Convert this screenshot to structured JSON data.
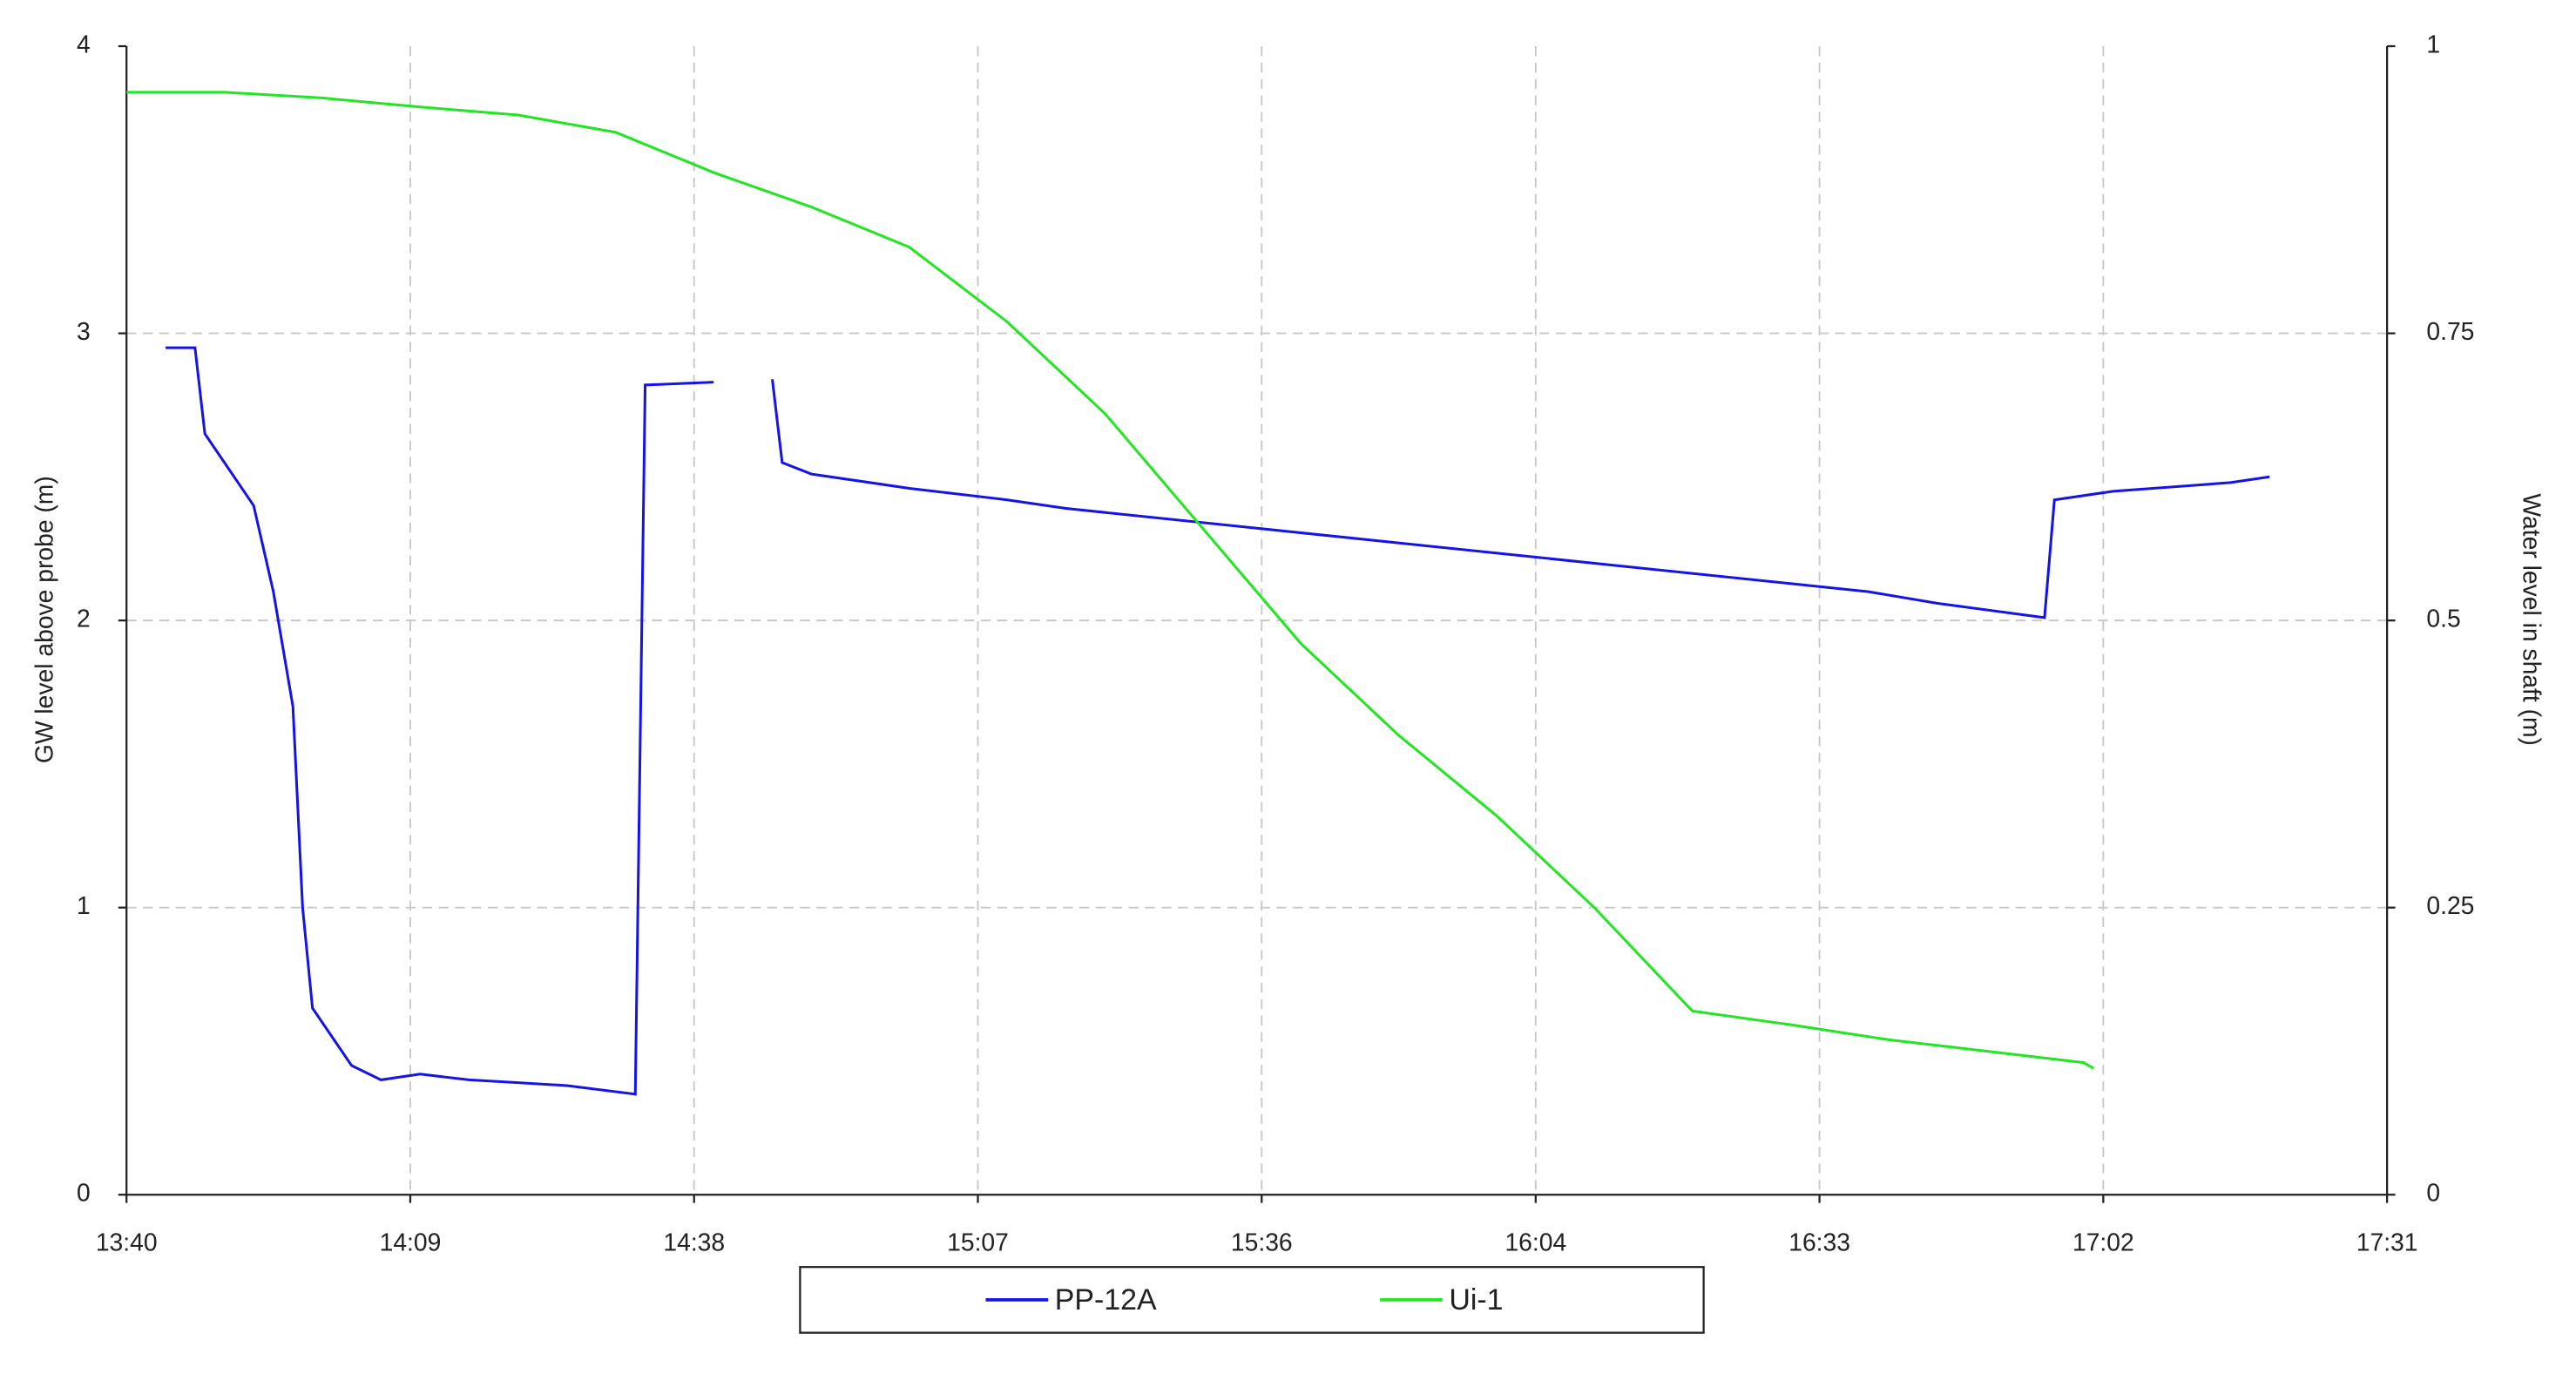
{
  "chart_data": {
    "type": "line",
    "y_label": "GW level above probe (m)",
    "y2_label": "Water level in shaft (m)",
    "xlim": [
      "13:40",
      "17:31"
    ],
    "xticks": [
      "13:40",
      "14:09",
      "14:38",
      "15:07",
      "15:36",
      "16:04",
      "16:33",
      "17:02",
      "17:31"
    ],
    "ylim": [
      0,
      4
    ],
    "yticks": [
      0,
      1,
      2,
      3,
      4
    ],
    "y2lim": [
      0,
      1
    ],
    "y2ticks": [
      0,
      0.25,
      0.5,
      0.75,
      1
    ],
    "grid": true,
    "legend": "bottom",
    "series": [
      {
        "name": "PP-12A",
        "color": "#1414e6",
        "axis": "y",
        "x": [
          "13:44",
          "13:47",
          "13:48",
          "13:50",
          "13:53",
          "13:55",
          "13:57",
          "13:58",
          "13:59",
          "14:01",
          "14:03",
          "14:06",
          "14:10",
          "14:15",
          "14:20",
          "14:25",
          "14:32",
          "14:33",
          "14:40",
          "14:43",
          "14:46",
          "14:47",
          "14:50",
          "15:00",
          "15:10",
          "15:16",
          "16:38",
          "16:45",
          "16:56",
          "16:57",
          "17:03",
          "17:15",
          "17:19"
        ],
        "values": [
          2.95,
          2.95,
          2.65,
          2.55,
          2.4,
          2.1,
          1.7,
          1.0,
          0.65,
          0.55,
          0.45,
          0.4,
          0.42,
          0.4,
          0.39,
          0.38,
          0.35,
          2.82,
          2.83,
          null,
          2.84,
          2.55,
          2.51,
          2.46,
          2.42,
          2.39,
          2.1,
          2.06,
          2.01,
          2.42,
          2.45,
          2.48,
          2.5
        ]
      },
      {
        "name": "Ui-1",
        "color": "#22e622",
        "axis": "y2",
        "x": [
          "13:40",
          "13:50",
          "14:00",
          "14:10",
          "14:20",
          "14:30",
          "14:40",
          "14:50",
          "15:00",
          "15:10",
          "15:20",
          "15:30",
          "15:40",
          "15:50",
          "16:00",
          "16:10",
          "16:20",
          "16:30",
          "16:40",
          "16:50",
          "17:00",
          "17:01"
        ],
        "values": [
          0.96,
          0.96,
          0.955,
          0.947,
          0.94,
          0.925,
          0.89,
          0.86,
          0.825,
          0.76,
          0.68,
          0.58,
          0.48,
          0.4,
          0.33,
          0.25,
          0.16,
          0.148,
          0.135,
          0.125,
          0.115,
          0.11
        ]
      }
    ]
  }
}
